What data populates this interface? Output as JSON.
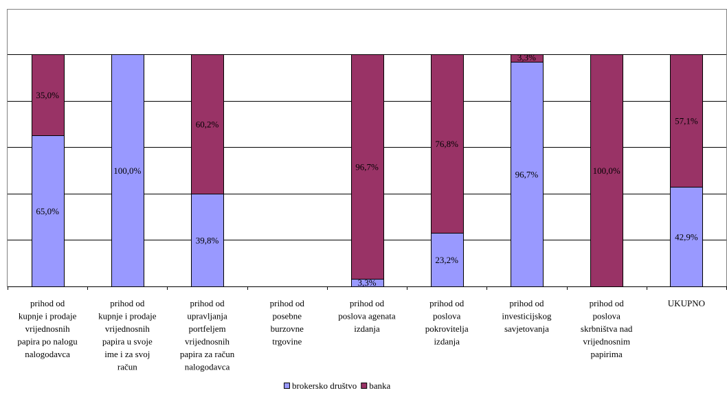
{
  "chart_data": {
    "type": "bar",
    "stacked": true,
    "percent_stacked": true,
    "categories": [
      [
        "prihod od",
        "kupnje i prodaje",
        "vrijednosnih",
        "papira po nalogu",
        "nalogodavca"
      ],
      [
        "prihod od",
        "kupnje i prodaje",
        "vrijednosnih",
        "papira u svoje",
        "ime i za svoj",
        "račun"
      ],
      [
        "prihod od",
        "upravljanja",
        "portfeljem",
        "vrijednosnih",
        "papira za račun",
        "nalogodavca"
      ],
      [
        "prihod od",
        "posebne",
        "burzovne",
        "trgovine"
      ],
      [
        "prihod od",
        "poslova agenata",
        "izdanja"
      ],
      [
        "prihod od",
        "poslova",
        "pokrovitelja",
        "izdanja"
      ],
      [
        "prihod od",
        "investicijskog",
        "savjetovanja"
      ],
      [
        "prihod od",
        "poslova",
        "skrbništva nad",
        "vrijednosnim",
        "papirima"
      ],
      [
        "UKUPNO"
      ]
    ],
    "series": [
      {
        "name": "brokersko društvo",
        "color": "#9999ff",
        "values": [
          65.0,
          100.0,
          39.8,
          null,
          3.3,
          23.2,
          96.7,
          0,
          42.9
        ],
        "labels": [
          "65,0%",
          "100,0%",
          "39,8%",
          "",
          "3,3%",
          "23,2%",
          "96,7%",
          "",
          "42,9%"
        ]
      },
      {
        "name": "banka",
        "color": "#993366",
        "values": [
          35.0,
          0,
          60.2,
          null,
          96.7,
          76.8,
          3.3,
          100.0,
          57.1
        ],
        "labels": [
          "35,0%",
          "",
          "60,2%",
          "",
          "96,7%",
          "76,8%",
          "3,3%",
          "100,0%",
          "57,1%"
        ]
      }
    ],
    "ylim": [
      0,
      100
    ],
    "grid": true,
    "legend_position": "bottom"
  }
}
